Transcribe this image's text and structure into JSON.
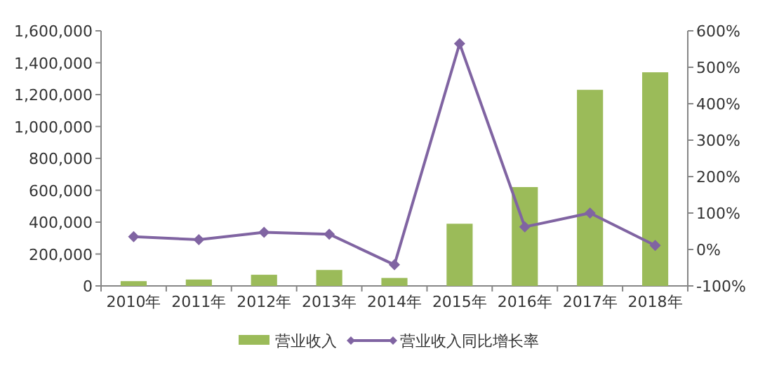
{
  "chart_data": {
    "type": "bar",
    "categories": [
      "2010年",
      "2011年",
      "2012年",
      "2013年",
      "2014年",
      "2015年",
      "2016年",
      "2017年",
      "2018年"
    ],
    "series": [
      {
        "name": "营业收入",
        "color": "#9bbb59",
        "values": [
          30000,
          40000,
          70000,
          100000,
          50000,
          390000,
          620000,
          1230000,
          1340000
        ]
      },
      {
        "name": "营业收入同比增长率",
        "type": "line",
        "axis": "y2",
        "color": "#8064a2",
        "marker": "diamond",
        "values": [
          35,
          27,
          47,
          42,
          -42,
          565,
          62,
          100,
          11
        ]
      }
    ],
    "ylim": [
      0,
      1600000
    ],
    "yticks": [
      {
        "value": 0,
        "label": "0"
      },
      {
        "value": 200000,
        "label": "200,000"
      },
      {
        "value": 400000,
        "label": "400,000"
      },
      {
        "value": 600000,
        "label": "600,000"
      },
      {
        "value": 800000,
        "label": "800,000"
      },
      {
        "value": 1000000,
        "label": "1,000,000"
      },
      {
        "value": 1200000,
        "label": "1,200,000"
      },
      {
        "value": 1400000,
        "label": "1,400,000"
      },
      {
        "value": 1600000,
        "label": "1,600,000"
      }
    ],
    "y2lim": [
      -100,
      600
    ],
    "y2ticks": [
      {
        "value": -100,
        "label": "-100%"
      },
      {
        "value": 0,
        "label": "0%"
      },
      {
        "value": 100,
        "label": "100%"
      },
      {
        "value": 200,
        "label": "200%"
      },
      {
        "value": 300,
        "label": "300%"
      },
      {
        "value": 400,
        "label": "400%"
      },
      {
        "value": 500,
        "label": "500%"
      },
      {
        "value": 600,
        "label": "600%"
      }
    ],
    "legend": "bottom",
    "grid": false
  }
}
